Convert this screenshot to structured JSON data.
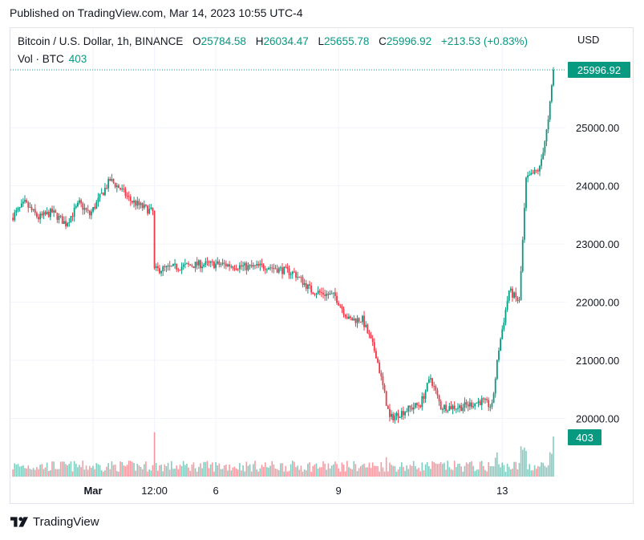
{
  "published": "Published on TradingView.com, Mar 14, 2023 10:55 UTC-4",
  "legend": {
    "symbol": "Bitcoin / U.S. Dollar, 1h, BINANCE",
    "open_label": "O",
    "open": "25784.58",
    "high_label": "H",
    "high": "26034.47",
    "low_label": "L",
    "low": "25655.78",
    "close_label": "C",
    "close": "25996.92",
    "change": "+213.53 (+0.83%)"
  },
  "volume_legend": {
    "label": "Vol · BTC",
    "value": "403"
  },
  "brand": {
    "name": "TradingView",
    "logo_icon": "tradingview-logo-icon"
  },
  "colors": {
    "up": "#089981",
    "down": "#f23645",
    "last_price": "#089981"
  },
  "chart_data": {
    "type": "candlestick",
    "interval": "1h",
    "currency": "USD",
    "yticks": [
      20000,
      21000,
      22000,
      23000,
      24000,
      25000
    ],
    "yrange": [
      19000,
      26700
    ],
    "last_price": 25996.92,
    "last_price_label": "25996.92",
    "last_volume": 403,
    "last_volume_label": "403",
    "xticks": [
      {
        "label": "Mar",
        "hour": 48,
        "bold": true
      },
      {
        "label": "12:00",
        "hour": 84,
        "bold": false
      },
      {
        "label": "6",
        "hour": 120,
        "bold": false
      },
      {
        "label": "9",
        "hour": 192,
        "bold": false
      },
      {
        "label": "13",
        "hour": 288,
        "bold": false
      }
    ],
    "xrange_hours": [
      0,
      318
    ],
    "price_path": [
      {
        "hour": 0,
        "price": 23450
      },
      {
        "hour": 8,
        "price": 23700
      },
      {
        "hour": 16,
        "price": 23450
      },
      {
        "hour": 24,
        "price": 23550
      },
      {
        "hour": 32,
        "price": 23350
      },
      {
        "hour": 40,
        "price": 23700
      },
      {
        "hour": 46,
        "price": 23500
      },
      {
        "hour": 52,
        "price": 23800
      },
      {
        "hour": 58,
        "price": 24100
      },
      {
        "hour": 64,
        "price": 23950
      },
      {
        "hour": 70,
        "price": 23750
      },
      {
        "hour": 76,
        "price": 23650
      },
      {
        "hour": 83,
        "price": 23550
      },
      {
        "hour": 84,
        "price": 22550
      },
      {
        "hour": 96,
        "price": 22600
      },
      {
        "hour": 110,
        "price": 22650
      },
      {
        "hour": 124,
        "price": 22650
      },
      {
        "hour": 140,
        "price": 22600
      },
      {
        "hour": 150,
        "price": 22620
      },
      {
        "hour": 166,
        "price": 22500
      },
      {
        "hour": 176,
        "price": 22200
      },
      {
        "hour": 190,
        "price": 22100
      },
      {
        "hour": 198,
        "price": 21700
      },
      {
        "hour": 206,
        "price": 21700
      },
      {
        "hour": 214,
        "price": 21100
      },
      {
        "hour": 222,
        "price": 20000
      },
      {
        "hour": 232,
        "price": 20150
      },
      {
        "hour": 240,
        "price": 20250
      },
      {
        "hour": 246,
        "price": 20700
      },
      {
        "hour": 252,
        "price": 20200
      },
      {
        "hour": 264,
        "price": 20200
      },
      {
        "hour": 276,
        "price": 20300
      },
      {
        "hour": 282,
        "price": 20200
      },
      {
        "hour": 286,
        "price": 21200
      },
      {
        "hour": 292,
        "price": 22200
      },
      {
        "hour": 298,
        "price": 22000
      },
      {
        "hour": 302,
        "price": 24100
      },
      {
        "hour": 310,
        "price": 24300
      },
      {
        "hour": 315,
        "price": 25100
      },
      {
        "hour": 318,
        "price": 25996.92
      }
    ]
  }
}
